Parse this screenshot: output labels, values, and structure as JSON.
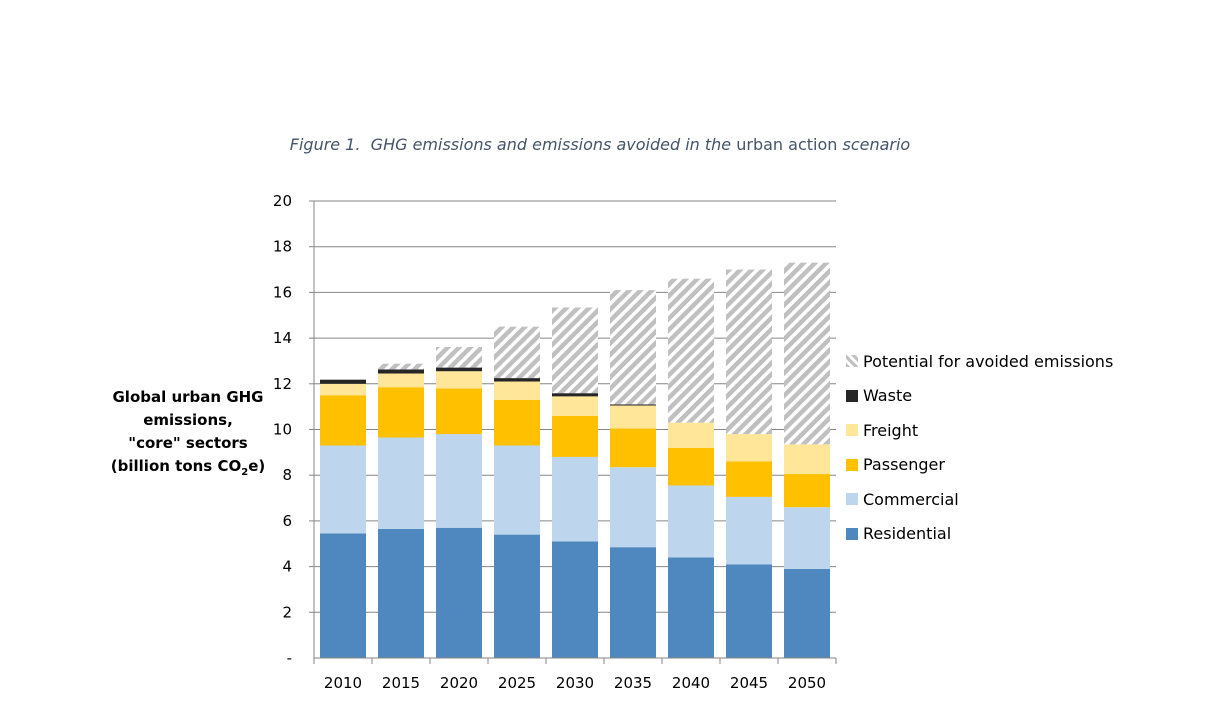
{
  "caption": {
    "figure_label": "Figure 1.",
    "text_italic_1": "GHG emissions and emissions avoided in the",
    "text_plain": "urban action",
    "text_italic_2": "scenario"
  },
  "ylabel": {
    "line1": "Global urban GHG",
    "line2": "emissions,",
    "line3": "\"core\" sectors",
    "line4_pre": "(billion tons CO",
    "line4_sub": "2",
    "line4_post": "e)"
  },
  "chart_data": {
    "type": "bar",
    "stacked": true,
    "categories": [
      "2010",
      "2015",
      "2020",
      "2025",
      "2030",
      "2035",
      "2040",
      "2045",
      "2050"
    ],
    "ylim": [
      0,
      20
    ],
    "yticks": [
      0,
      2,
      4,
      6,
      8,
      10,
      12,
      14,
      16,
      18,
      20
    ],
    "ytick_labels": [
      "-",
      "2",
      "4",
      "6",
      "8",
      "10",
      "12",
      "14",
      "16",
      "18",
      "20"
    ],
    "grid": true,
    "legend_position": "right",
    "series": [
      {
        "name": "Residential",
        "color": "#4f88be",
        "values": [
          5.45,
          5.65,
          5.7,
          5.4,
          5.1,
          4.85,
          4.4,
          4.1,
          3.9
        ]
      },
      {
        "name": "Commercial",
        "color": "#bdd6ee",
        "values": [
          3.85,
          4.0,
          4.1,
          3.9,
          3.7,
          3.5,
          3.15,
          2.95,
          2.7
        ]
      },
      {
        "name": "Passenger",
        "color": "#ffc000",
        "values": [
          2.2,
          2.2,
          2.0,
          2.0,
          1.8,
          1.7,
          1.65,
          1.55,
          1.45
        ]
      },
      {
        "name": "Freight",
        "color": "#ffe699",
        "values": [
          0.5,
          0.6,
          0.75,
          0.8,
          0.85,
          1.0,
          1.1,
          1.2,
          1.3
        ]
      },
      {
        "name": "Waste",
        "color": "#262626",
        "values": [
          0.18,
          0.18,
          0.16,
          0.15,
          0.14,
          0.05,
          0.0,
          0.0,
          0.0
        ]
      },
      {
        "name": "Potential for avoided emissions",
        "color": "#c0c0c0",
        "pattern": "diagonal-hatch",
        "values": [
          0.0,
          0.25,
          0.9,
          2.25,
          3.75,
          5.0,
          6.3,
          7.2,
          7.95
        ]
      }
    ]
  }
}
